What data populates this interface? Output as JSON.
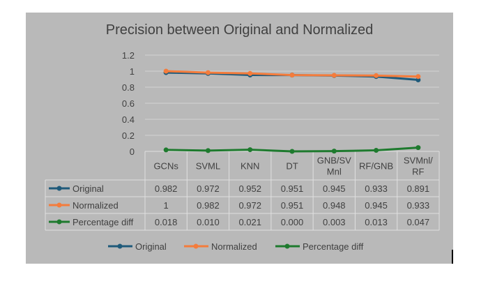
{
  "chart_data": {
    "type": "line",
    "title": "Precision between Original and Normalized",
    "categories": [
      "GCNs",
      "SVML",
      "KNN",
      "DT",
      "GNB/SVMnl",
      "RF/GNB",
      "SVMnl/RF"
    ],
    "category_lines": [
      [
        "GCNs"
      ],
      [
        "SVML"
      ],
      [
        "KNN"
      ],
      [
        "DT"
      ],
      [
        "GNB/SV",
        "Mnl"
      ],
      [
        "RF/GNB"
      ],
      [
        "SVMnl/",
        "RF"
      ]
    ],
    "ylim": [
      0,
      1.2
    ],
    "yticks": [
      "0",
      "0.2",
      "0.4",
      "0.6",
      "0.8",
      "1",
      "1.2"
    ],
    "grid": true,
    "legend_position": "bottom",
    "data_table": true,
    "series": [
      {
        "name": "Original",
        "color": "#1f5a7a",
        "values": [
          0.982,
          0.972,
          0.952,
          0.951,
          0.945,
          0.933,
          0.891
        ],
        "table_values": [
          "0.982",
          "0.972",
          "0.952",
          "0.951",
          "0.945",
          "0.933",
          "0.891"
        ]
      },
      {
        "name": "Normalized",
        "color": "#f47c3c",
        "values": [
          1,
          0.982,
          0.972,
          0.951,
          0.948,
          0.945,
          0.933
        ],
        "table_values": [
          "1",
          "0.982",
          "0.972",
          "0.951",
          "0.948",
          "0.945",
          "0.933"
        ]
      },
      {
        "name": "Percentage diff",
        "color": "#1e7a2e",
        "values": [
          0.018,
          0.01,
          0.021,
          0.0,
          0.003,
          0.013,
          0.047
        ],
        "table_values": [
          "0.018",
          "0.010",
          "0.021",
          "0.000",
          "0.003",
          "0.013",
          "0.047"
        ]
      }
    ]
  }
}
